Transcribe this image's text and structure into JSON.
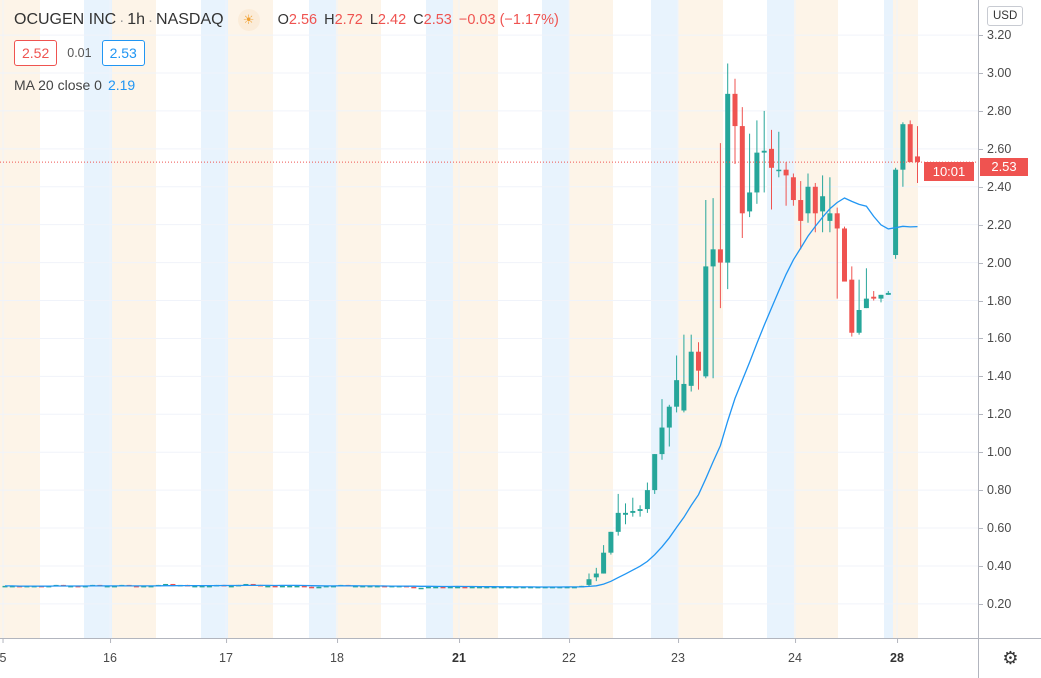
{
  "header": {
    "symbol": "OCUGEN INC",
    "interval": "1h",
    "exchange": "NASDAQ",
    "session_icon": "sun-icon",
    "open_label": "O",
    "open": "2.56",
    "high_label": "H",
    "high": "2.72",
    "low_label": "L",
    "low": "2.42",
    "close_label": "C",
    "close": "2.53",
    "change": "−0.03 (−1.17%)"
  },
  "quote": {
    "bid": "2.52",
    "spread": "0.01",
    "ask": "2.53"
  },
  "indicator": {
    "label": "MA 20 close 0",
    "value": "2.19"
  },
  "price_axis": {
    "currency": "USD",
    "ticks": [
      "3.20",
      "3.00",
      "2.80",
      "2.60",
      "2.40",
      "2.20",
      "2.00",
      "1.80",
      "1.60",
      "1.40",
      "1.20",
      "1.00",
      "0.80",
      "0.60",
      "0.40",
      "0.20"
    ],
    "last_price": "2.53",
    "countdown": "10:01"
  },
  "time_axis": {
    "ticks": [
      {
        "label": "5",
        "bold": false
      },
      {
        "label": "16",
        "bold": false
      },
      {
        "label": "17",
        "bold": false
      },
      {
        "label": "18",
        "bold": false
      },
      {
        "label": "21",
        "bold": true
      },
      {
        "label": "22",
        "bold": false
      },
      {
        "label": "23",
        "bold": false
      },
      {
        "label": "24",
        "bold": false
      },
      {
        "label": "28",
        "bold": true
      }
    ]
  },
  "colors": {
    "up": "#26a69a",
    "down": "#ef5350",
    "ma": "#2196f3",
    "premarket": "#e8f3fd",
    "postmarket": "#fdf4e8"
  },
  "chart_data": {
    "type": "candlestick",
    "ma_period": 20,
    "last_price": 2.53,
    "ylim": [
      0,
      3.3
    ],
    "early_closes": [
      0.295,
      0.295,
      0.29,
      0.295,
      0.295,
      0.29,
      0.295,
      0.3,
      0.295,
      0.295,
      0.29,
      0.295,
      0.3,
      0.295,
      0.295,
      0.295,
      0.3,
      0.295,
      0.29,
      0.295,
      0.295,
      0.3,
      0.305,
      0.3,
      0.3,
      0.295,
      0.295,
      0.295,
      0.295,
      0.3,
      0.295,
      0.295,
      0.3,
      0.305,
      0.3,
      0.295,
      0.295,
      0.29,
      0.295,
      0.295,
      0.295,
      0.29,
      0.285,
      0.29,
      0.295,
      0.295,
      0.3,
      0.295,
      0.295,
      0.295,
      0.295,
      0.295,
      0.29,
      0.295,
      0.295,
      0.29,
      0.285,
      0.285,
      0.29,
      0.29,
      0.285,
      0.29,
      0.29,
      0.285,
      0.29,
      0.29,
      0.29,
      0.29,
      0.29,
      0.29,
      0.29,
      0.29,
      0.29,
      0.29,
      0.29,
      0.29,
      0.29,
      0.29,
      0.29,
      0.295
    ],
    "candles": [
      [
        0.3,
        0.36,
        0.29,
        0.33
      ],
      [
        0.34,
        0.39,
        0.32,
        0.36
      ],
      [
        0.36,
        0.51,
        0.36,
        0.47
      ],
      [
        0.47,
        0.58,
        0.46,
        0.58
      ],
      [
        0.58,
        0.78,
        0.56,
        0.68
      ],
      [
        0.67,
        0.73,
        0.62,
        0.68
      ],
      [
        0.68,
        0.76,
        0.66,
        0.69
      ],
      [
        0.69,
        0.72,
        0.66,
        0.7
      ],
      [
        0.7,
        0.84,
        0.68,
        0.8
      ],
      [
        0.8,
        0.99,
        0.78,
        0.99
      ],
      [
        0.99,
        1.28,
        0.96,
        1.13
      ],
      [
        1.13,
        1.25,
        1.03,
        1.24
      ],
      [
        1.24,
        1.51,
        1.21,
        1.38
      ],
      [
        1.22,
        1.62,
        1.21,
        1.36
      ],
      [
        1.35,
        1.62,
        1.32,
        1.53
      ],
      [
        1.53,
        1.58,
        1.33,
        1.43
      ],
      [
        1.4,
        2.33,
        1.39,
        1.98
      ],
      [
        1.98,
        2.34,
        1.39,
        2.07
      ],
      [
        2.07,
        2.63,
        1.76,
        2.0
      ],
      [
        2.0,
        3.05,
        1.86,
        2.89
      ],
      [
        2.89,
        2.97,
        2.52,
        2.72
      ],
      [
        2.72,
        2.82,
        2.13,
        2.26
      ],
      [
        2.27,
        2.68,
        2.24,
        2.37
      ],
      [
        2.37,
        2.75,
        2.31,
        2.58
      ],
      [
        2.58,
        2.8,
        2.37,
        2.59
      ],
      [
        2.6,
        2.7,
        2.28,
        2.5
      ],
      [
        2.49,
        2.69,
        2.45,
        2.49
      ],
      [
        2.49,
        2.53,
        2.3,
        2.46
      ],
      [
        2.45,
        2.47,
        2.3,
        2.33
      ],
      [
        2.33,
        2.43,
        2.07,
        2.22
      ],
      [
        2.26,
        2.47,
        2.21,
        2.4
      ],
      [
        2.4,
        2.42,
        2.16,
        2.26
      ],
      [
        2.27,
        2.46,
        2.16,
        2.35
      ],
      [
        2.22,
        2.45,
        2.16,
        2.26
      ],
      [
        2.26,
        2.29,
        1.81,
        2.18
      ],
      [
        2.18,
        2.19,
        1.9,
        1.9
      ],
      [
        1.91,
        1.98,
        1.61,
        1.63
      ],
      [
        1.63,
        1.91,
        1.62,
        1.75
      ],
      [
        1.76,
        1.97,
        1.76,
        1.81
      ],
      [
        1.82,
        1.85,
        1.8,
        1.81
      ],
      [
        1.81,
        1.83,
        1.79,
        1.83
      ],
      [
        1.83,
        1.85,
        1.83,
        1.84
      ],
      [
        2.04,
        2.5,
        2.02,
        2.49
      ],
      [
        2.49,
        2.74,
        2.4,
        2.73
      ],
      [
        2.73,
        2.75,
        2.53,
        2.53
      ],
      [
        2.56,
        2.72,
        2.42,
        2.53
      ]
    ]
  }
}
